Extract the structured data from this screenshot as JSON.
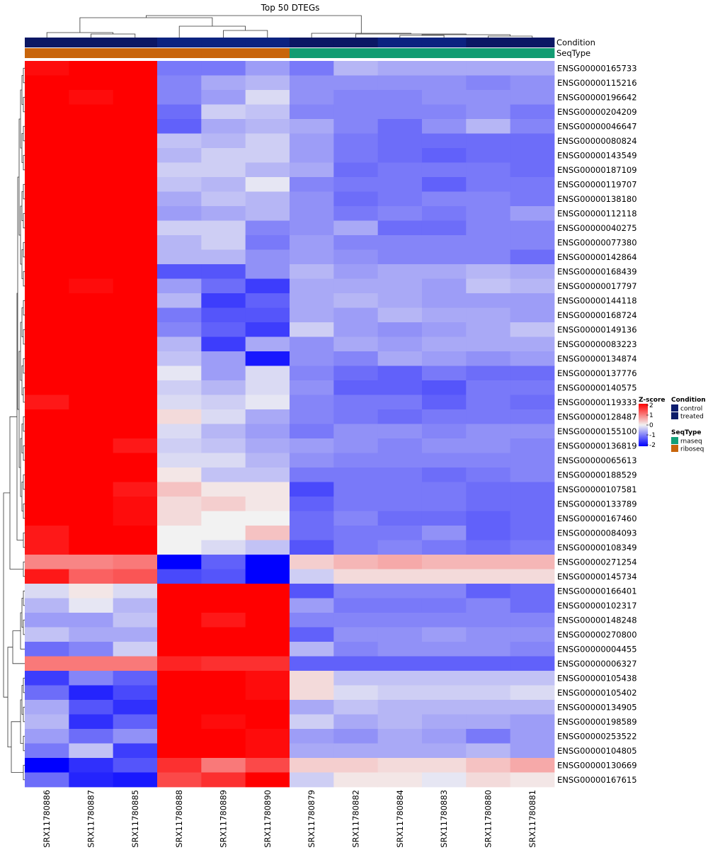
{
  "chart_data": {
    "type": "heatmap",
    "title": "Top 50 DTEGs",
    "columns": [
      "SRX11780886",
      "SRX11780887",
      "SRX11780885",
      "SRX11780888",
      "SRX11780889",
      "SRX11780890",
      "SRX11780879",
      "SRX11780882",
      "SRX11780884",
      "SRX11780883",
      "SRX11780880",
      "SRX11780881"
    ],
    "rows": [
      "ENSG00000165733",
      "ENSG00000115216",
      "ENSG00000196642",
      "ENSG00000204209",
      "ENSG00000046647",
      "ENSG00000080824",
      "ENSG00000143549",
      "ENSG00000187109",
      "ENSG00000119707",
      "ENSG00000138180",
      "ENSG00000112118",
      "ENSG00000040275",
      "ENSG00000077380",
      "ENSG00000142864",
      "ENSG00000168439",
      "ENSG00000017797",
      "ENSG00000144118",
      "ENSG00000168724",
      "ENSG00000149136",
      "ENSG00000083223",
      "ENSG00000134874",
      "ENSG00000137776",
      "ENSG00000140575",
      "ENSG00000119333",
      "ENSG00000128487",
      "ENSG00000155100",
      "ENSG00000136819",
      "ENSG00000065613",
      "ENSG00000188529",
      "ENSG00000107581",
      "ENSG00000133789",
      "ENSG00000167460",
      "ENSG00000084093",
      "ENSG00000108349",
      "ENSG00000271254",
      "ENSG00000145734",
      "ENSG00000166401",
      "ENSG00000102317",
      "ENSG00000148248",
      "ENSG00000270800",
      "ENSG00000004455",
      "ENSG00000006327",
      "ENSG00000105438",
      "ENSG00000105402",
      "ENSG00000134905",
      "ENSG00000198589",
      "ENSG00000253522",
      "ENSG00000104805",
      "ENSG00000130669",
      "ENSG00000167615"
    ],
    "values": [
      [
        1.9,
        2.3,
        2.0,
        -1.0,
        -1.0,
        -0.7,
        -1.0,
        -0.5,
        -0.6,
        -0.6,
        -0.6,
        -0.6
      ],
      [
        2.0,
        2.6,
        2.1,
        -0.9,
        -0.6,
        -0.5,
        -0.8,
        -0.8,
        -0.8,
        -0.8,
        -0.9,
        -0.8
      ],
      [
        2.1,
        1.9,
        2.8,
        -0.9,
        -0.7,
        -0.2,
        -0.8,
        -0.9,
        -0.9,
        -0.8,
        -0.8,
        -0.8
      ],
      [
        2.2,
        2.1,
        2.3,
        -1.1,
        -0.3,
        -0.4,
        -0.9,
        -0.9,
        -0.9,
        -0.9,
        -0.8,
        -1.0
      ],
      [
        2.6,
        2.1,
        2.2,
        -1.2,
        -0.6,
        -0.5,
        -0.6,
        -0.9,
        -1.1,
        -0.8,
        -0.5,
        -0.9
      ],
      [
        2.4,
        2.2,
        2.1,
        -0.4,
        -0.5,
        -0.3,
        -0.7,
        -1.0,
        -1.1,
        -1.1,
        -1.1,
        -1.1
      ],
      [
        2.8,
        2.1,
        2.1,
        -0.5,
        -0.3,
        -0.3,
        -0.7,
        -1.0,
        -1.1,
        -1.2,
        -1.1,
        -1.1
      ],
      [
        2.5,
        2.1,
        2.2,
        -0.3,
        -0.3,
        -0.5,
        -0.6,
        -1.1,
        -1.0,
        -1.0,
        -1.0,
        -1.1
      ],
      [
        2.5,
        2.3,
        2.2,
        -0.4,
        -0.5,
        -0.1,
        -0.9,
        -1.0,
        -1.0,
        -1.2,
        -1.0,
        -1.0
      ],
      [
        2.3,
        2.5,
        2.2,
        -0.6,
        -0.4,
        -0.5,
        -0.8,
        -1.1,
        -1.0,
        -0.9,
        -0.9,
        -1.0
      ],
      [
        2.5,
        2.3,
        2.2,
        -0.7,
        -0.6,
        -0.5,
        -0.8,
        -1.0,
        -0.9,
        -1.0,
        -0.9,
        -0.7
      ],
      [
        2.4,
        2.2,
        2.3,
        -0.3,
        -0.3,
        -0.9,
        -0.8,
        -0.6,
        -1.1,
        -1.1,
        -0.9,
        -0.9
      ],
      [
        2.6,
        2.3,
        2.2,
        -0.5,
        -0.3,
        -1.0,
        -0.7,
        -0.9,
        -0.9,
        -0.9,
        -0.9,
        -0.9
      ],
      [
        2.5,
        2.4,
        2.3,
        -0.5,
        -0.5,
        -0.8,
        -0.7,
        -0.8,
        -0.9,
        -0.9,
        -0.9,
        -1.1
      ],
      [
        2.4,
        2.0,
        2.4,
        -1.3,
        -1.3,
        -0.8,
        -0.5,
        -0.7,
        -0.6,
        -0.6,
        -0.5,
        -0.6
      ],
      [
        2.4,
        1.9,
        2.3,
        -0.7,
        -1.1,
        -1.5,
        -0.6,
        -0.6,
        -0.6,
        -0.7,
        -0.4,
        -0.5
      ],
      [
        2.4,
        2.2,
        2.1,
        -0.5,
        -1.5,
        -1.2,
        -0.6,
        -0.5,
        -0.6,
        -0.7,
        -0.7,
        -0.7
      ],
      [
        2.8,
        2.2,
        2.0,
        -1.0,
        -1.3,
        -1.3,
        -0.6,
        -0.7,
        -0.5,
        -0.6,
        -0.6,
        -0.7
      ],
      [
        2.2,
        2.5,
        2.0,
        -0.9,
        -1.2,
        -1.5,
        -0.3,
        -0.7,
        -0.8,
        -0.7,
        -0.6,
        -0.4
      ],
      [
        2.1,
        2.5,
        2.2,
        -0.5,
        -1.5,
        -0.6,
        -0.8,
        -0.6,
        -0.7,
        -0.6,
        -0.6,
        -0.6
      ],
      [
        2.3,
        2.1,
        2.3,
        -0.4,
        -0.7,
        -1.8,
        -0.8,
        -0.9,
        -0.6,
        -0.7,
        -0.8,
        -0.7
      ],
      [
        2.3,
        2.1,
        2.2,
        -0.1,
        -0.7,
        -0.2,
        -0.9,
        -1.1,
        -1.2,
        -1.0,
        -1.1,
        -1.1
      ],
      [
        2.1,
        2.4,
        2.1,
        -0.3,
        -0.5,
        -0.2,
        -0.8,
        -1.2,
        -1.2,
        -1.3,
        -1.0,
        -1.0
      ],
      [
        1.8,
        2.2,
        2.2,
        -0.2,
        -0.3,
        -0.1,
        -0.9,
        -1.0,
        -1.0,
        -1.2,
        -1.0,
        -1.1
      ],
      [
        2.1,
        2.2,
        2.3,
        0.2,
        -0.2,
        -0.6,
        -0.9,
        -1.0,
        -1.1,
        -1.0,
        -1.0,
        -1.0
      ],
      [
        2.1,
        2.2,
        2.4,
        -0.2,
        -0.5,
        -0.7,
        -1.0,
        -0.8,
        -0.8,
        -0.9,
        -0.8,
        -0.8
      ],
      [
        2.7,
        2.3,
        1.8,
        -0.3,
        -0.4,
        -0.6,
        -0.7,
        -0.8,
        -0.9,
        -0.8,
        -0.8,
        -0.9
      ],
      [
        2.2,
        2.0,
        2.2,
        -0.2,
        -0.2,
        -0.5,
        -0.8,
        -0.9,
        -0.9,
        -0.9,
        -0.9,
        -0.9
      ],
      [
        2.5,
        2.0,
        2.0,
        0.1,
        -0.4,
        -0.4,
        -1.0,
        -1.0,
        -1.0,
        -1.1,
        -1.0,
        -0.9
      ],
      [
        2.0,
        2.0,
        1.8,
        0.4,
        0.1,
        0.1,
        -1.4,
        -1.0,
        -1.0,
        -1.0,
        -1.1,
        -1.1
      ],
      [
        2.0,
        2.0,
        1.9,
        0.2,
        0.3,
        0.1,
        -1.2,
        -1.0,
        -1.0,
        -1.0,
        -1.1,
        -1.1
      ],
      [
        2.2,
        2.0,
        1.9,
        0.2,
        0.0,
        0.0,
        -1.1,
        -0.9,
        -1.1,
        -1.1,
        -1.2,
        -1.1
      ],
      [
        1.8,
        2.0,
        2.1,
        0.0,
        0.0,
        0.4,
        -1.1,
        -1.0,
        -1.0,
        -0.8,
        -1.2,
        -1.1
      ],
      [
        1.8,
        2.5,
        2.0,
        0.0,
        -0.2,
        -0.4,
        -1.3,
        -1.0,
        -0.9,
        -1.0,
        -1.1,
        -1.0
      ],
      [
        0.9,
        0.9,
        1.0,
        -2.5,
        -1.2,
        -2.6,
        0.3,
        0.5,
        0.6,
        0.5,
        0.5,
        0.5
      ],
      [
        1.8,
        1.2,
        1.3,
        -1.4,
        -1.3,
        -2.6,
        -0.3,
        0.2,
        0.2,
        0.2,
        0.2,
        0.2
      ],
      [
        -0.2,
        0.1,
        -0.2,
        2.1,
        2.2,
        2.3,
        -1.3,
        -0.9,
        -0.9,
        -0.9,
        -1.2,
        -1.1
      ],
      [
        -0.5,
        -0.1,
        -0.5,
        2.5,
        2.0,
        2.4,
        -0.7,
        -1.0,
        -1.0,
        -1.0,
        -0.9,
        -1.1
      ],
      [
        -0.7,
        -0.7,
        -0.4,
        2.3,
        1.8,
        2.8,
        -0.9,
        -0.9,
        -0.9,
        -0.9,
        -0.9,
        -0.9
      ],
      [
        -0.4,
        -0.6,
        -0.6,
        2.3,
        2.0,
        2.6,
        -1.2,
        -0.8,
        -0.8,
        -0.7,
        -0.8,
        -0.8
      ],
      [
        -1.1,
        -0.9,
        -0.3,
        2.2,
        2.0,
        2.8,
        -0.5,
        -0.9,
        -0.8,
        -0.8,
        -0.8,
        -0.9
      ],
      [
        1.0,
        1.0,
        1.0,
        1.7,
        1.6,
        1.6,
        -1.2,
        -1.2,
        -1.2,
        -1.2,
        -1.2,
        -1.2
      ],
      [
        -1.5,
        -0.9,
        -1.2,
        2.1,
        2.1,
        1.9,
        0.2,
        -0.4,
        -0.4,
        -0.4,
        -0.4,
        -0.4
      ],
      [
        -1.1,
        -1.7,
        -1.4,
        2.0,
        2.2,
        1.9,
        0.2,
        -0.2,
        -0.3,
        -0.3,
        -0.3,
        -0.2
      ],
      [
        -0.6,
        -1.3,
        -1.6,
        2.1,
        2.4,
        2.1,
        -0.6,
        -0.4,
        -0.5,
        -0.5,
        -0.5,
        -0.5
      ],
      [
        -0.5,
        -1.6,
        -1.2,
        2.4,
        1.9,
        2.1,
        -0.3,
        -0.6,
        -0.5,
        -0.6,
        -0.6,
        -0.7
      ],
      [
        -0.7,
        -1.1,
        -0.8,
        2.4,
        2.6,
        1.9,
        -0.7,
        -0.8,
        -0.6,
        -0.7,
        -1.0,
        -0.7
      ],
      [
        -1.0,
        -0.4,
        -1.5,
        2.5,
        2.3,
        1.9,
        -0.6,
        -0.6,
        -0.6,
        -0.6,
        -0.5,
        -0.7
      ],
      [
        -2.6,
        -1.6,
        -1.3,
        1.6,
        1.0,
        1.4,
        0.3,
        0.3,
        0.2,
        0.2,
        0.4,
        0.6
      ],
      [
        -1.1,
        -1.7,
        -1.8,
        1.4,
        1.6,
        2.0,
        -0.3,
        0.1,
        0.1,
        -0.1,
        0.2,
        0.1
      ]
    ],
    "condition": [
      "control",
      "control",
      "control",
      "treated",
      "treated",
      "treated",
      "control",
      "control",
      "treated",
      "treated",
      "control",
      "control"
    ],
    "seqtype": [
      "riboseq",
      "riboseq",
      "riboseq",
      "riboseq",
      "riboseq",
      "riboseq",
      "rnaseq",
      "rnaseq",
      "rnaseq",
      "rnaseq",
      "rnaseq",
      "rnaseq"
    ],
    "annotation_labels": [
      "Condition",
      "SeqType"
    ],
    "colorbar": {
      "title": "Z-score",
      "ticks": [
        2,
        1,
        0,
        -1,
        -2
      ],
      "low": "#0000ff",
      "mid": "#f2f2f2",
      "high": "#ff0000"
    },
    "legends": [
      {
        "title": "Condition",
        "items": [
          {
            "label": "control",
            "color": "#0d1d6e"
          },
          {
            "label": "treated",
            "color": "#0c1c6a"
          }
        ]
      },
      {
        "title": "SeqType",
        "items": [
          {
            "label": "rnaseq",
            "color": "#12a078"
          },
          {
            "label": "riboseq",
            "color": "#c8650c"
          }
        ]
      }
    ],
    "colors": {
      "control": "#0b1764",
      "treated": "#0c2380",
      "rnaseq": "#129c72",
      "riboseq": "#c8650c"
    }
  }
}
